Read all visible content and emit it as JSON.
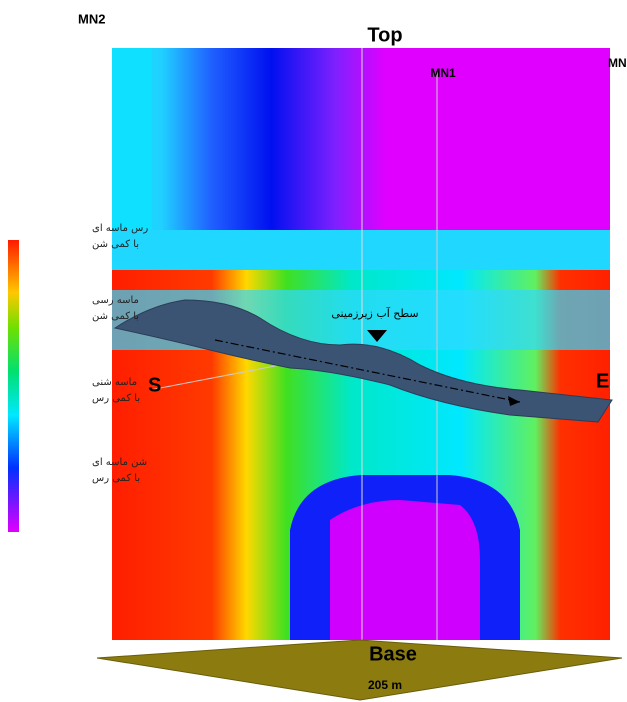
{
  "labels": {
    "mn2": "MN2",
    "top": "Top",
    "mn1": "MN1",
    "mn": "MN",
    "start": "S",
    "end": "E",
    "water_table": "سطح آب زیرزمینی",
    "base": "Base",
    "base_width": "205 m"
  },
  "legend": [
    {
      "lines": [
        "رس ماسه ای",
        "با کمی شن"
      ]
    },
    {
      "lines": [
        "ماسه رسی",
        "با کمی شن"
      ]
    },
    {
      "lines": [
        "ماسه شنی",
        "با کمی رس"
      ]
    },
    {
      "lines": [
        "شن ماسه ای",
        "با کمی رس"
      ]
    }
  ]
}
